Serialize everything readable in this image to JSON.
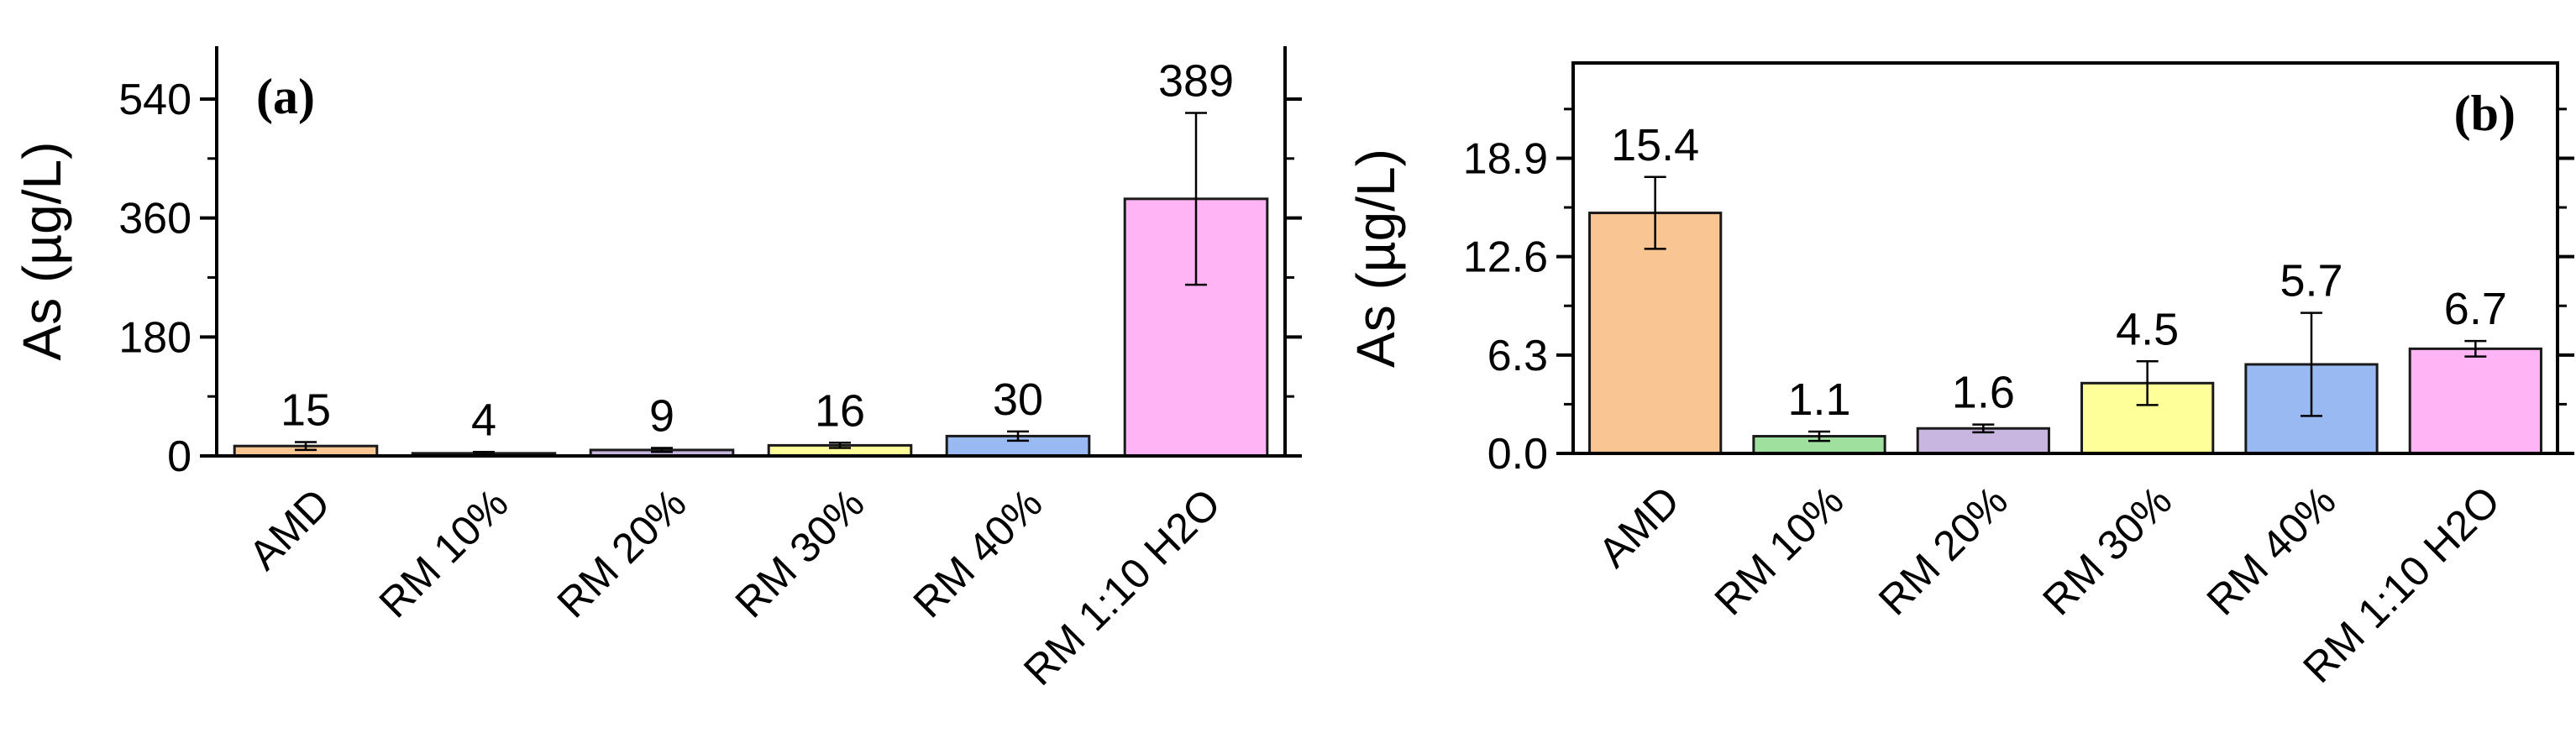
{
  "chart_data": [
    {
      "type": "bar",
      "panel_label": "(a)",
      "title": "",
      "xlabel": "",
      "ylabel": "As (µg/L)",
      "categories": [
        "AMD",
        "RM 10%",
        "RM 20%",
        "RM 30%",
        "RM 40%",
        "RM 1:10 H2O"
      ],
      "values": [
        15,
        4,
        9,
        16,
        30,
        389
      ],
      "value_labels": [
        "15",
        "4",
        "9",
        "16",
        "30",
        "389"
      ],
      "error": [
        6,
        2,
        3,
        4,
        7,
        130
      ],
      "colors": [
        "#f9c592",
        "#9fe09f",
        "#c8b6e0",
        "#ffff99",
        "#99b9f3",
        "#ffb5f5"
      ],
      "ylim": [
        0,
        620
      ],
      "yticks": [
        0,
        180,
        360,
        540
      ],
      "ytick_labels": [
        "0",
        "180",
        "360",
        "540"
      ],
      "grid": false,
      "legend": "none"
    },
    {
      "type": "bar",
      "panel_label": "(b)",
      "title": "",
      "xlabel": "",
      "ylabel": "As (µg/L)",
      "categories": [
        "AMD",
        "RM 10%",
        "RM 20%",
        "RM 30%",
        "RM 40%",
        "RM 1:10 H2O"
      ],
      "values": [
        15.4,
        1.1,
        1.6,
        4.5,
        5.7,
        6.7
      ],
      "value_labels": [
        "15.4",
        "1.1",
        "1.6",
        "4.5",
        "5.7",
        "6.7"
      ],
      "error": [
        2.3,
        0.3,
        0.25,
        1.4,
        3.3,
        0.5
      ],
      "colors": [
        "#f9c592",
        "#9fe09f",
        "#c8b6e0",
        "#ffff99",
        "#99b9f3",
        "#ffb5f5"
      ],
      "ylim": [
        0,
        25
      ],
      "yticks": [
        0.0,
        6.3,
        12.6,
        18.9
      ],
      "ytick_labels": [
        "0.0",
        "6.3",
        "12.6",
        "18.9"
      ],
      "grid": false,
      "legend": "none"
    }
  ]
}
